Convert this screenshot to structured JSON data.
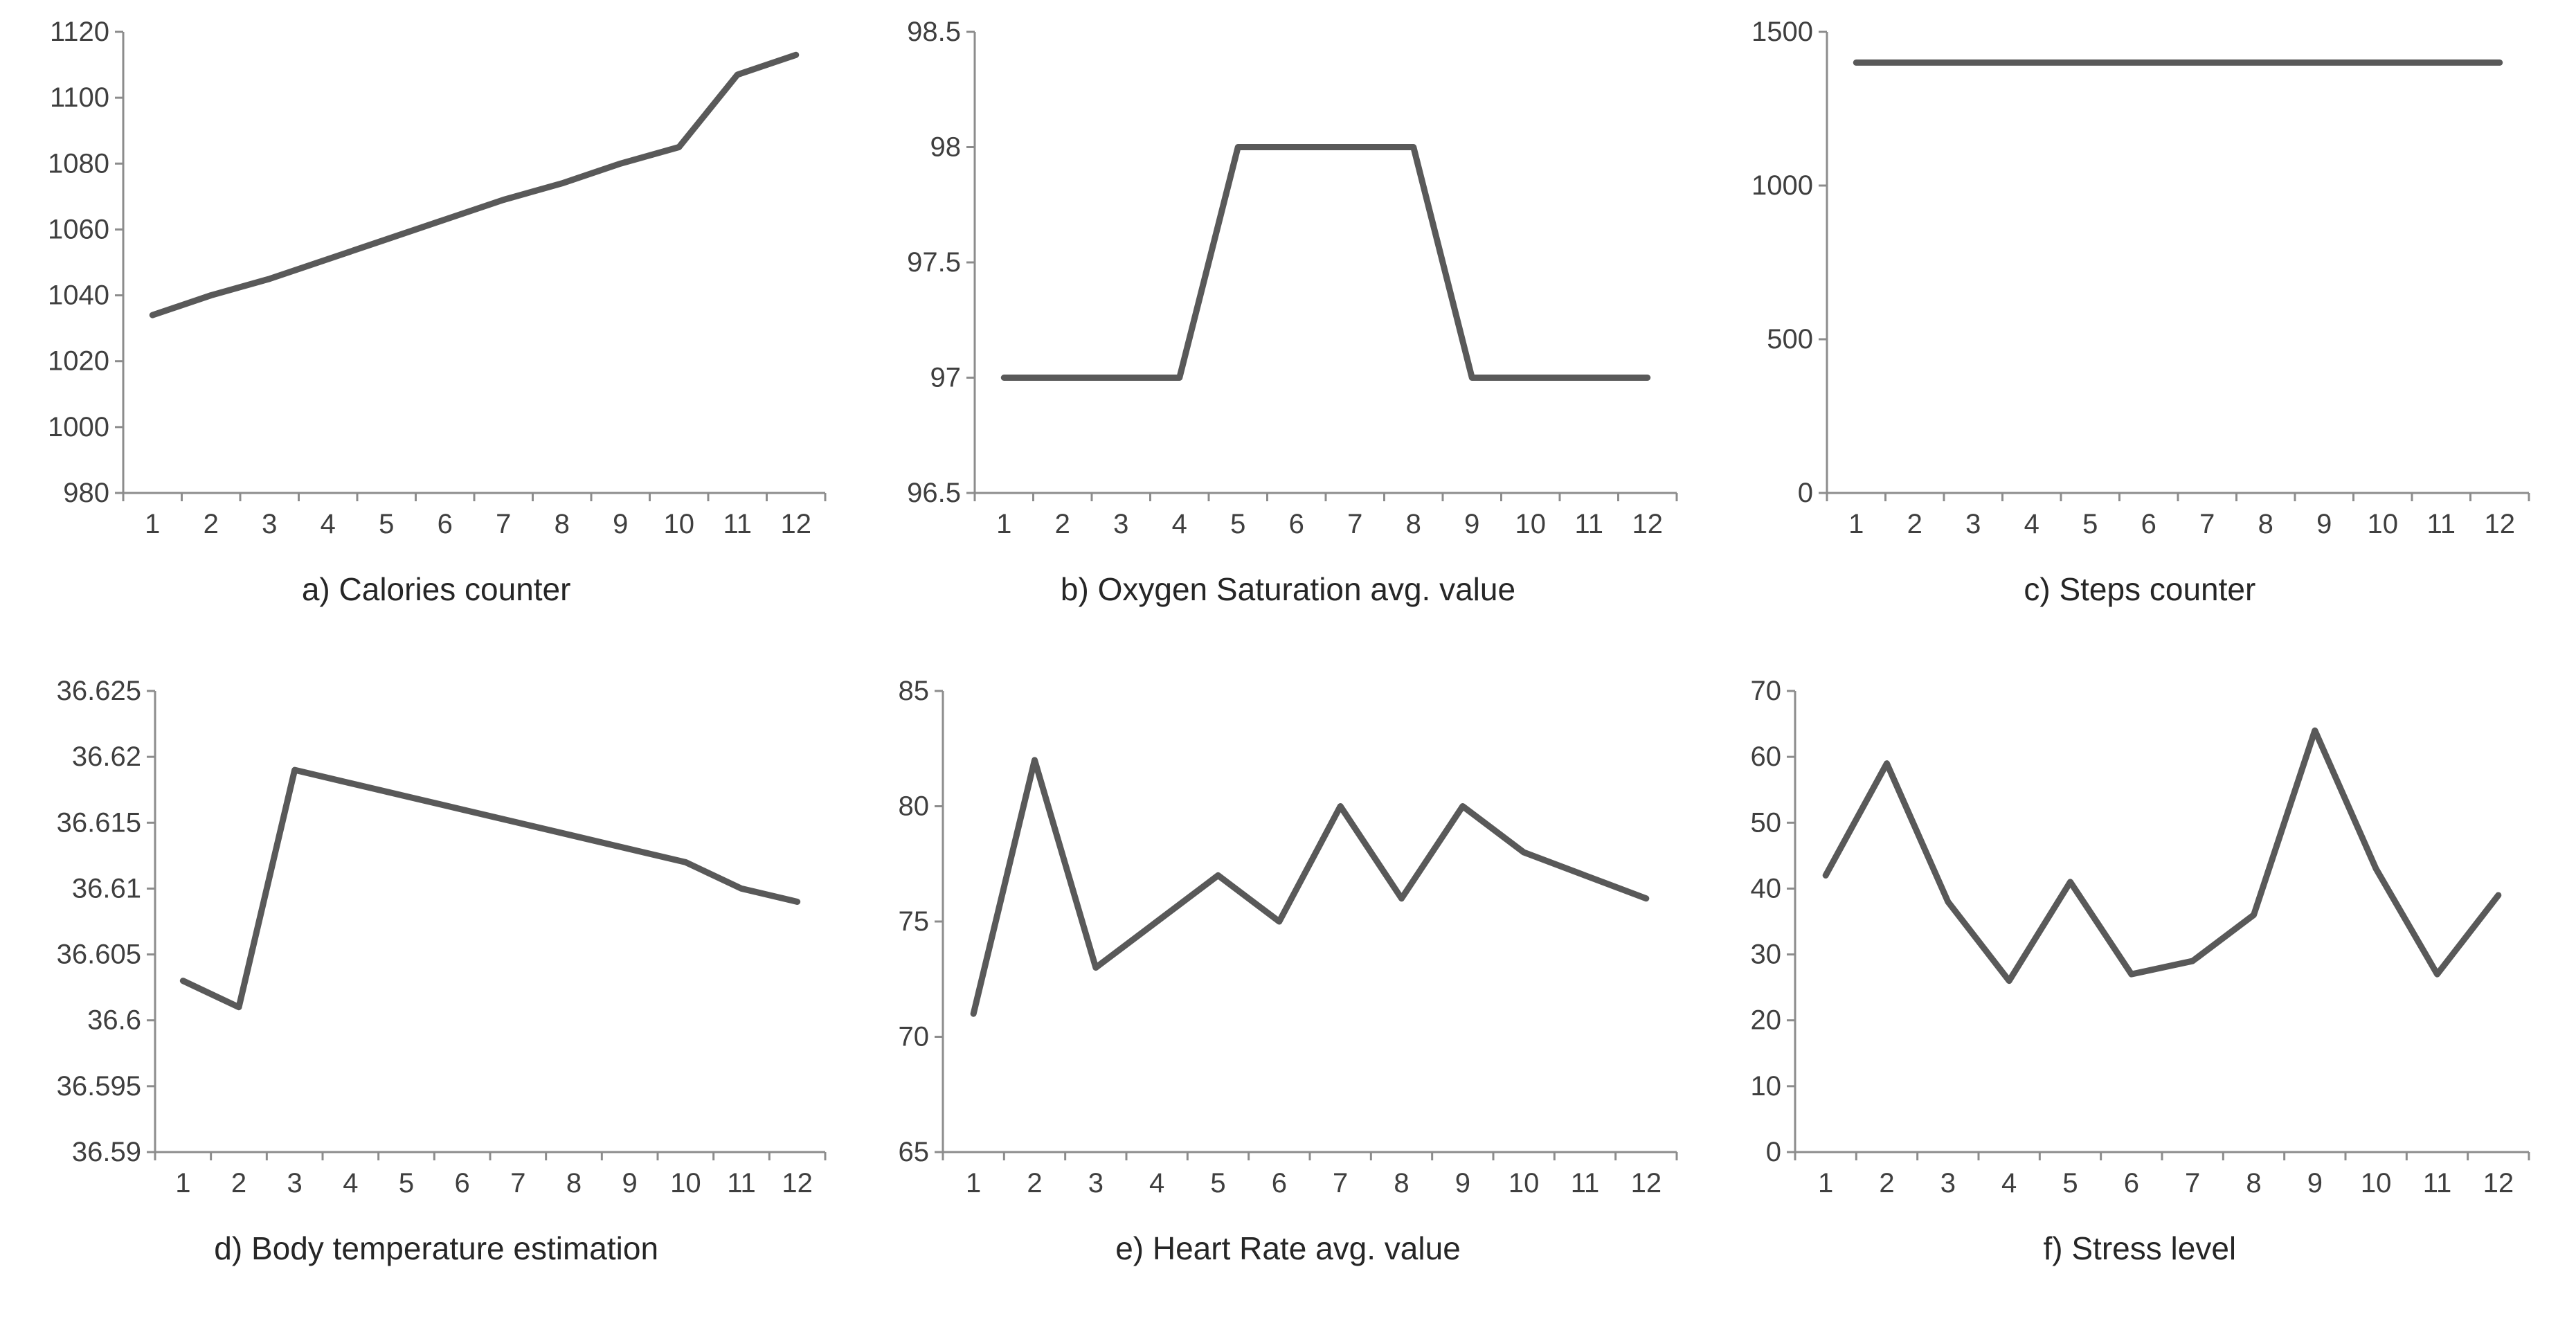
{
  "style": {
    "line_color": "#595959",
    "axis_color": "#8c8c8c",
    "tick_color": "#8c8c8c",
    "text_color": "#3f3f3f",
    "background": "#ffffff"
  },
  "chart_data": [
    {
      "id": "calories",
      "type": "line",
      "title": "a) Calories counter",
      "xlabel": "",
      "ylabel": "",
      "x": [
        1,
        2,
        3,
        4,
        5,
        6,
        7,
        8,
        9,
        10,
        11,
        12
      ],
      "values": [
        1034,
        1040,
        1045,
        1051,
        1057,
        1063,
        1069,
        1074,
        1080,
        1085,
        1107,
        1113
      ],
      "ylim": [
        980,
        1120
      ],
      "yticks": [
        980,
        1000,
        1020,
        1040,
        1060,
        1080,
        1100,
        1120
      ],
      "grid": false,
      "legend": false
    },
    {
      "id": "oxygen-saturation",
      "type": "line",
      "title": "b) Oxygen Saturation avg. value",
      "xlabel": "",
      "ylabel": "",
      "x": [
        1,
        2,
        3,
        4,
        5,
        6,
        7,
        8,
        9,
        10,
        11,
        12
      ],
      "values": [
        97,
        97,
        97,
        97,
        98,
        98,
        98,
        98,
        97,
        97,
        97,
        97
      ],
      "ylim": [
        96.5,
        98.5
      ],
      "yticks": [
        96.5,
        97,
        97.5,
        98,
        98.5
      ],
      "grid": false,
      "legend": false
    },
    {
      "id": "steps",
      "type": "line",
      "title": "c) Steps counter",
      "xlabel": "",
      "ylabel": "",
      "x": [
        1,
        2,
        3,
        4,
        5,
        6,
        7,
        8,
        9,
        10,
        11,
        12
      ],
      "values": [
        1400,
        1400,
        1400,
        1400,
        1400,
        1400,
        1400,
        1400,
        1400,
        1400,
        1400,
        1400
      ],
      "ylim": [
        0,
        1500
      ],
      "yticks": [
        0,
        500,
        1000,
        1500
      ],
      "grid": false,
      "legend": false
    },
    {
      "id": "body-temperature",
      "type": "line",
      "title": "d) Body temperature estimation",
      "xlabel": "",
      "ylabel": "",
      "x": [
        1,
        2,
        3,
        4,
        5,
        6,
        7,
        8,
        9,
        10,
        11,
        12
      ],
      "values": [
        36.603,
        36.601,
        36.619,
        36.618,
        36.617,
        36.616,
        36.615,
        36.614,
        36.613,
        36.612,
        36.61,
        36.609
      ],
      "ylim": [
        36.59,
        36.625
      ],
      "yticks": [
        36.59,
        36.595,
        36.6,
        36.605,
        36.61,
        36.615,
        36.62,
        36.625
      ],
      "grid": false,
      "legend": false
    },
    {
      "id": "heart-rate",
      "type": "line",
      "title": "e) Heart Rate avg. value",
      "xlabel": "",
      "ylabel": "",
      "x": [
        1,
        2,
        3,
        4,
        5,
        6,
        7,
        8,
        9,
        10,
        11,
        12
      ],
      "values": [
        71,
        82,
        73,
        75,
        77,
        75,
        80,
        76,
        80,
        78,
        77,
        76
      ],
      "ylim": [
        65,
        85
      ],
      "yticks": [
        65,
        70,
        75,
        80,
        85
      ],
      "grid": false,
      "legend": false
    },
    {
      "id": "stress-level",
      "type": "line",
      "title": "f) Stress level",
      "xlabel": "",
      "ylabel": "",
      "x": [
        1,
        2,
        3,
        4,
        5,
        6,
        7,
        8,
        9,
        10,
        11,
        12
      ],
      "values": [
        42,
        59,
        38,
        26,
        41,
        27,
        29,
        36,
        64,
        43,
        27,
        39
      ],
      "ylim": [
        0,
        70
      ],
      "yticks": [
        0,
        10,
        20,
        30,
        40,
        50,
        60,
        70
      ],
      "grid": false,
      "legend": false
    }
  ]
}
